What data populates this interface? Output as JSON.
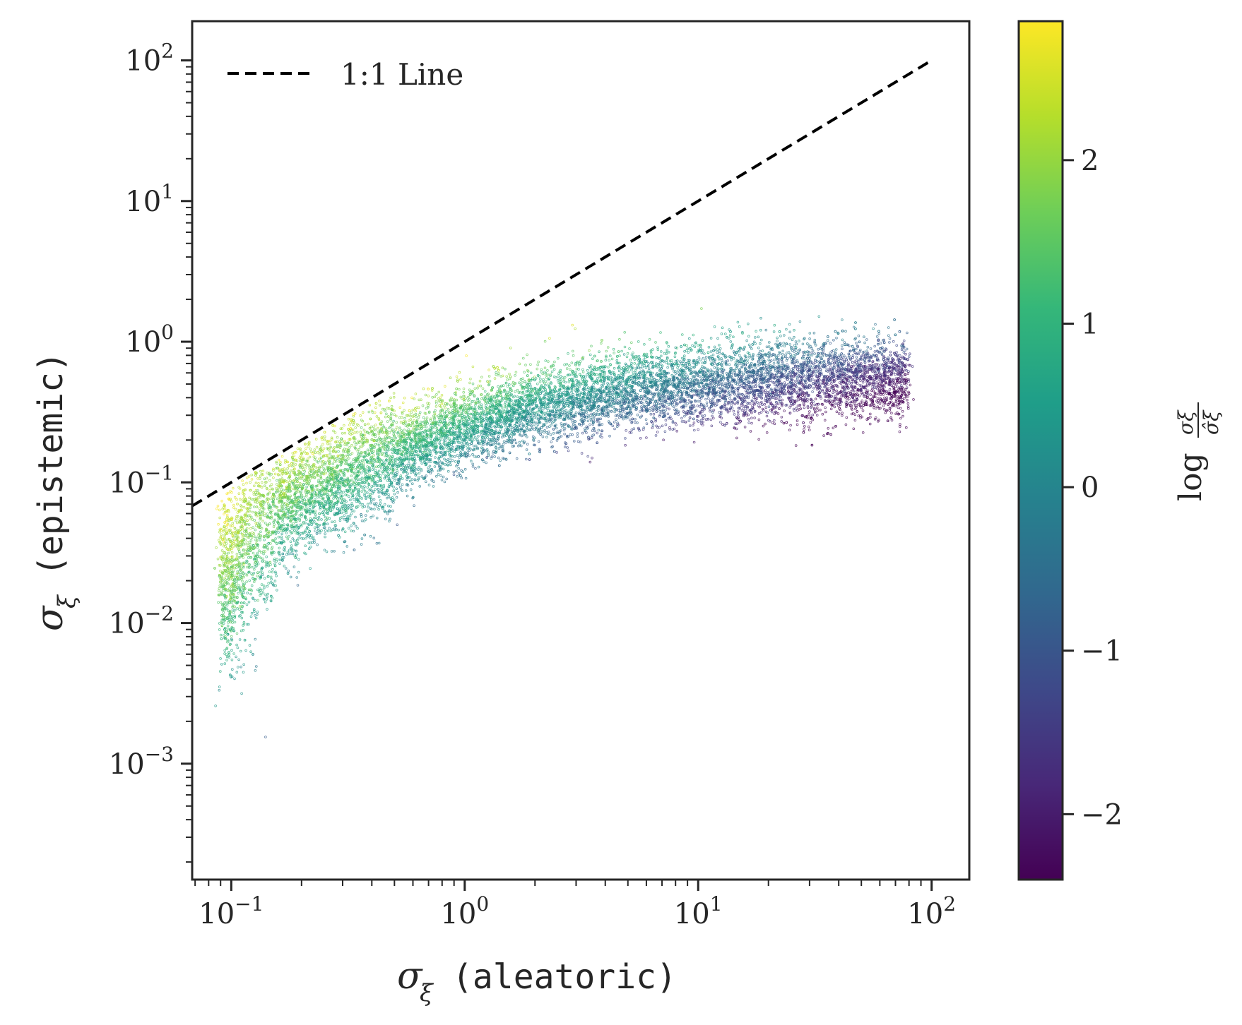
{
  "chart_data": {
    "type": "scatter",
    "x_scale": "log",
    "y_scale": "log",
    "xlim": [
      0.068,
      145
    ],
    "ylim": [
      0.00015,
      190
    ],
    "x_ticks": [
      {
        "value": 0.1,
        "base": "10",
        "exp": "−1"
      },
      {
        "value": 1,
        "base": "10",
        "exp": "0"
      },
      {
        "value": 10,
        "base": "10",
        "exp": "1"
      },
      {
        "value": 100,
        "base": "10",
        "exp": "2"
      }
    ],
    "y_ticks": [
      {
        "value": 0.001,
        "base": "10",
        "exp": "−3"
      },
      {
        "value": 0.01,
        "base": "10",
        "exp": "−2"
      },
      {
        "value": 0.1,
        "base": "10",
        "exp": "−1"
      },
      {
        "value": 1,
        "base": "10",
        "exp": "0"
      },
      {
        "value": 10,
        "base": "10",
        "exp": "1"
      },
      {
        "value": 100,
        "base": "10",
        "exp": "2"
      }
    ],
    "xlabel": {
      "symbol": "σ",
      "subscript": "ξ",
      "text": "(aleatoric)"
    },
    "ylabel": {
      "symbol": "σ",
      "subscript": "ξ",
      "text": "(epistemic)"
    },
    "reference_line": {
      "label": "1:1 Line",
      "x": [
        0.068,
        100
      ],
      "y": [
        0.068,
        100
      ],
      "style": "dashed",
      "color": "#000000"
    },
    "legend": {
      "entries": [
        "1:1 Line"
      ],
      "position": "top-left"
    },
    "colorbar": {
      "label": "log σξ / σ̂ξ",
      "label_log": "log",
      "label_num": "σξ",
      "label_den": "σ̂ξ",
      "range": [
        -2.4,
        2.85
      ],
      "ticks": [
        {
          "value": -2,
          "label": "−2"
        },
        {
          "value": -1,
          "label": "−1"
        },
        {
          "value": 0,
          "label": "0"
        },
        {
          "value": 1,
          "label": "1"
        },
        {
          "value": 2,
          "label": "2"
        }
      ],
      "colormap": "viridis"
    },
    "point_cloud": {
      "description_curve": "median epistemic vs aleatoric",
      "x_range": [
        0.09,
        80
      ],
      "curve_x": [
        0.1,
        0.12,
        0.15,
        0.2,
        0.3,
        0.5,
        1,
        2,
        5,
        10,
        30,
        80
      ],
      "curve_y": [
        0.02,
        0.04,
        0.06,
        0.08,
        0.11,
        0.16,
        0.25,
        0.35,
        0.45,
        0.5,
        0.55,
        0.55
      ],
      "color_at_x": [
        {
          "x": 0.1,
          "c": 1.7
        },
        {
          "x": 1,
          "c": 0.8
        },
        {
          "x": 10,
          "c": -0.5
        },
        {
          "x": 80,
          "c": -2.1
        }
      ],
      "n_points": 12000
    },
    "viridis_stops": [
      "#440154",
      "#482878",
      "#3e4989",
      "#31688e",
      "#26828e",
      "#1f9e89",
      "#35b779",
      "#6ece58",
      "#b5de2b",
      "#fde725"
    ]
  }
}
